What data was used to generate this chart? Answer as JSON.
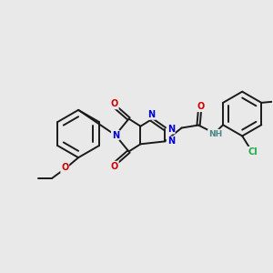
{
  "bg_color": "#e9e9e9",
  "bond_color": "#1a1a1a",
  "bond_width": 1.4,
  "dbo": 0.055,
  "atom_colors": {
    "N": "#0000cc",
    "O": "#cc0000",
    "Cl": "#22aa44",
    "H": "#448888",
    "C": "#1a1a1a"
  },
  "fs": 7.0
}
